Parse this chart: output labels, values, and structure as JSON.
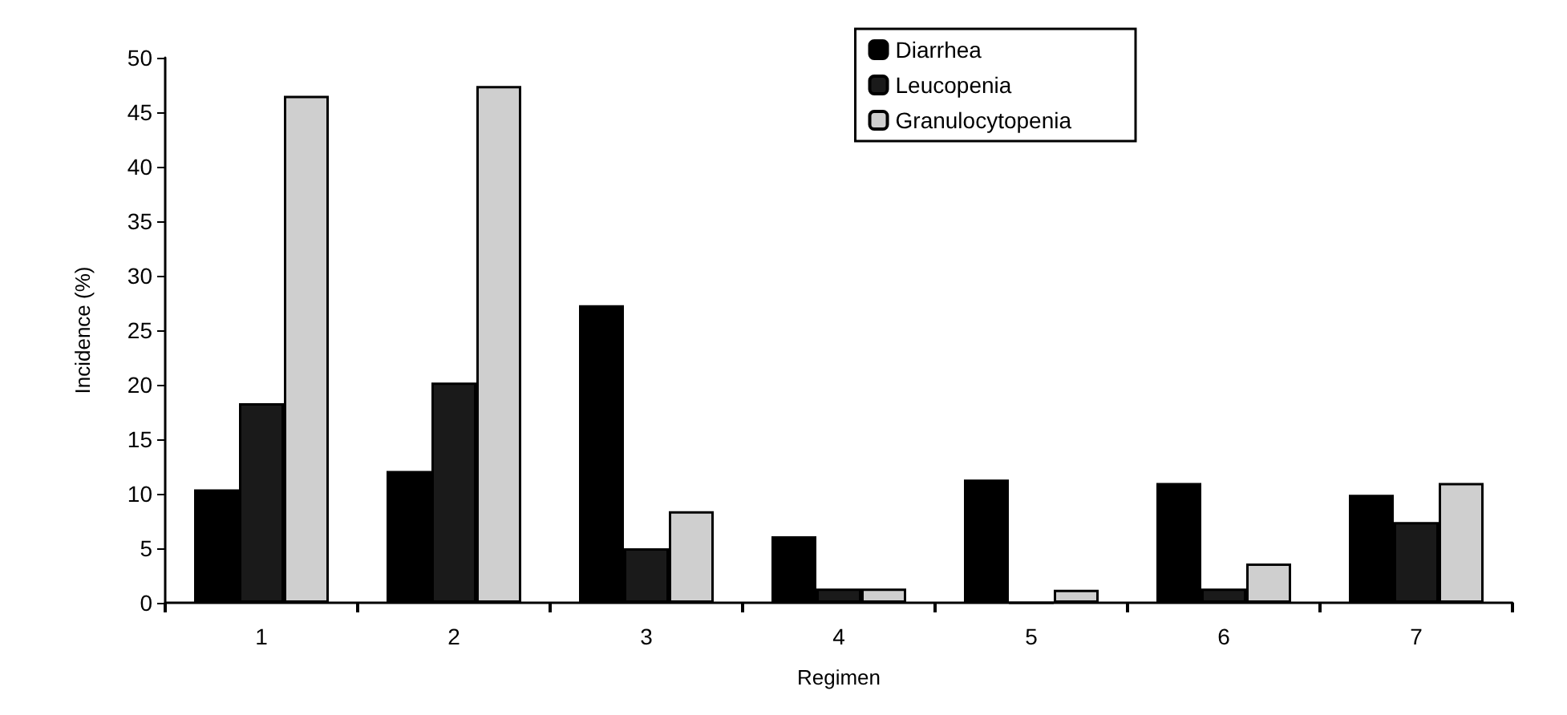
{
  "chart_data": {
    "type": "bar",
    "xlabel": "Regimen",
    "ylabel": "Incidence (%)",
    "categories": [
      "1",
      "2",
      "3",
      "4",
      "5",
      "6",
      "7"
    ],
    "series": [
      {
        "name": "Diarrhea",
        "color": "#000000",
        "values": [
          10.4,
          12.1,
          27.3,
          6.1,
          11.3,
          11.0,
          9.9
        ]
      },
      {
        "name": "Leucopenia",
        "color": "#1a1a1a",
        "values": [
          18.3,
          20.2,
          5.0,
          1.3,
          0,
          1.3,
          7.4
        ]
      },
      {
        "name": "Granulocytopenia",
        "color": "#cfcfcf",
        "values": [
          46.5,
          47.4,
          8.4,
          1.3,
          1.2,
          3.6,
          11.0
        ]
      }
    ],
    "ylim": [
      0,
      50
    ],
    "yticks": [
      0,
      5,
      10,
      15,
      20,
      25,
      30,
      35,
      40,
      45,
      50
    ],
    "grid": false,
    "legend": "top right"
  }
}
